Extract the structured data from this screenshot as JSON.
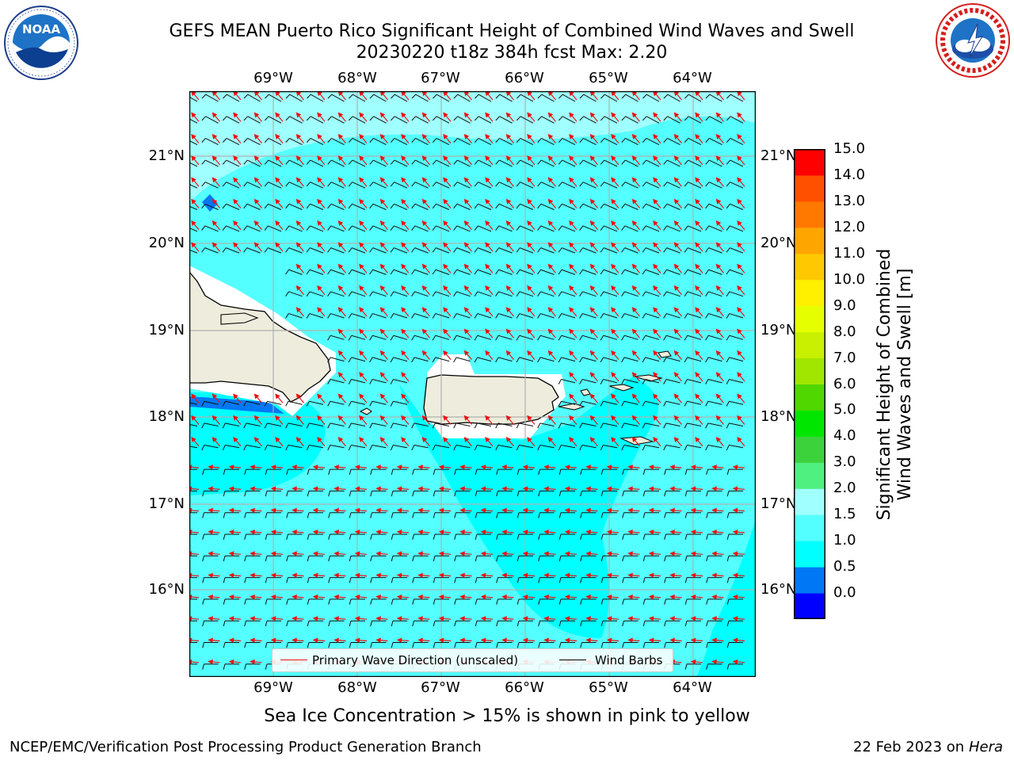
{
  "title_line1": "GEFS MEAN Puerto Rico Significant Height of Combined Wind Waves and Swell",
  "title_line2": "20230220 t18z 384h fcst   Max: 2.20",
  "logos": {
    "left": "noaa-logo",
    "left_text": "NOAA",
    "right": "nws-logo"
  },
  "map": {
    "lon_labels": [
      "69°W",
      "68°W",
      "67°W",
      "66°W",
      "65°W",
      "64°W"
    ],
    "lat_labels": [
      "21°N",
      "20°N",
      "19°N",
      "18°N",
      "17°N",
      "16°N"
    ],
    "ocean_color": "#54ffff",
    "land_color": "#eeecdc",
    "wave_arrow_color": "#ff0000",
    "barb_color": "#000000"
  },
  "legend": {
    "wave_label": "Primary Wave Direction (unscaled)",
    "barb_label": "Wind Barbs"
  },
  "colorbar": {
    "title_line1": "Significant Height of Combined",
    "title_line2": "Wind Waves and Swell [m]",
    "ticks": [
      "15.0",
      "14.0",
      "13.0",
      "12.0",
      "11.0",
      "10.0",
      "9.0",
      "8.0",
      "7.0",
      "6.0",
      "5.0",
      "4.0",
      "3.0",
      "2.0",
      "1.5",
      "1.0",
      "0.5",
      "0.0"
    ],
    "colors": [
      "#0000ff",
      "#0078f5",
      "#00ffff",
      "#54ffff",
      "#a0ffff",
      "#50f080",
      "#3cd23c",
      "#00e600",
      "#50d700",
      "#a0e600",
      "#c8f000",
      "#e6ff00",
      "#fff000",
      "#ffc800",
      "#ffa500",
      "#ff7800",
      "#ff5000",
      "#ff0000"
    ]
  },
  "ice_note": "Sea Ice Concentration > 15% is shown in pink to yellow",
  "footer": {
    "left": "NCEP/EMC/Verification Post Processing Product Generation Branch",
    "date": "22 Feb 2023 on",
    "host": "Hera"
  }
}
